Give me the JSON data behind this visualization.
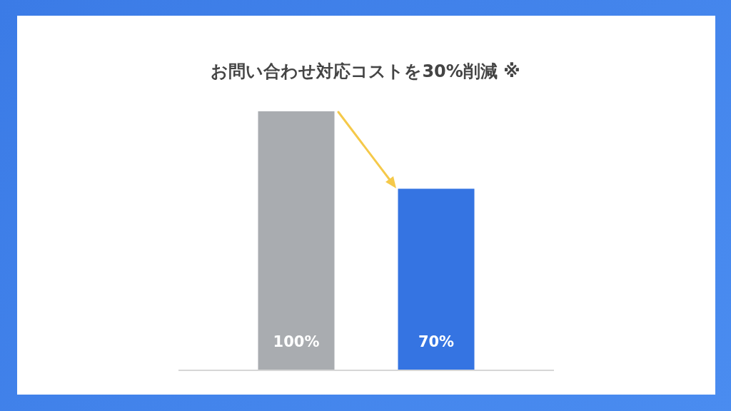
{
  "chart_data": {
    "type": "bar",
    "title": "お問い合わせ対応コストを30%削減 ※",
    "categories": [
      null,
      null
    ],
    "values": [
      100,
      70
    ],
    "colors": [
      "#a9acb0",
      "#3574e2"
    ],
    "value_labels": [
      "100%",
      "70%"
    ],
    "legend": false
  }
}
